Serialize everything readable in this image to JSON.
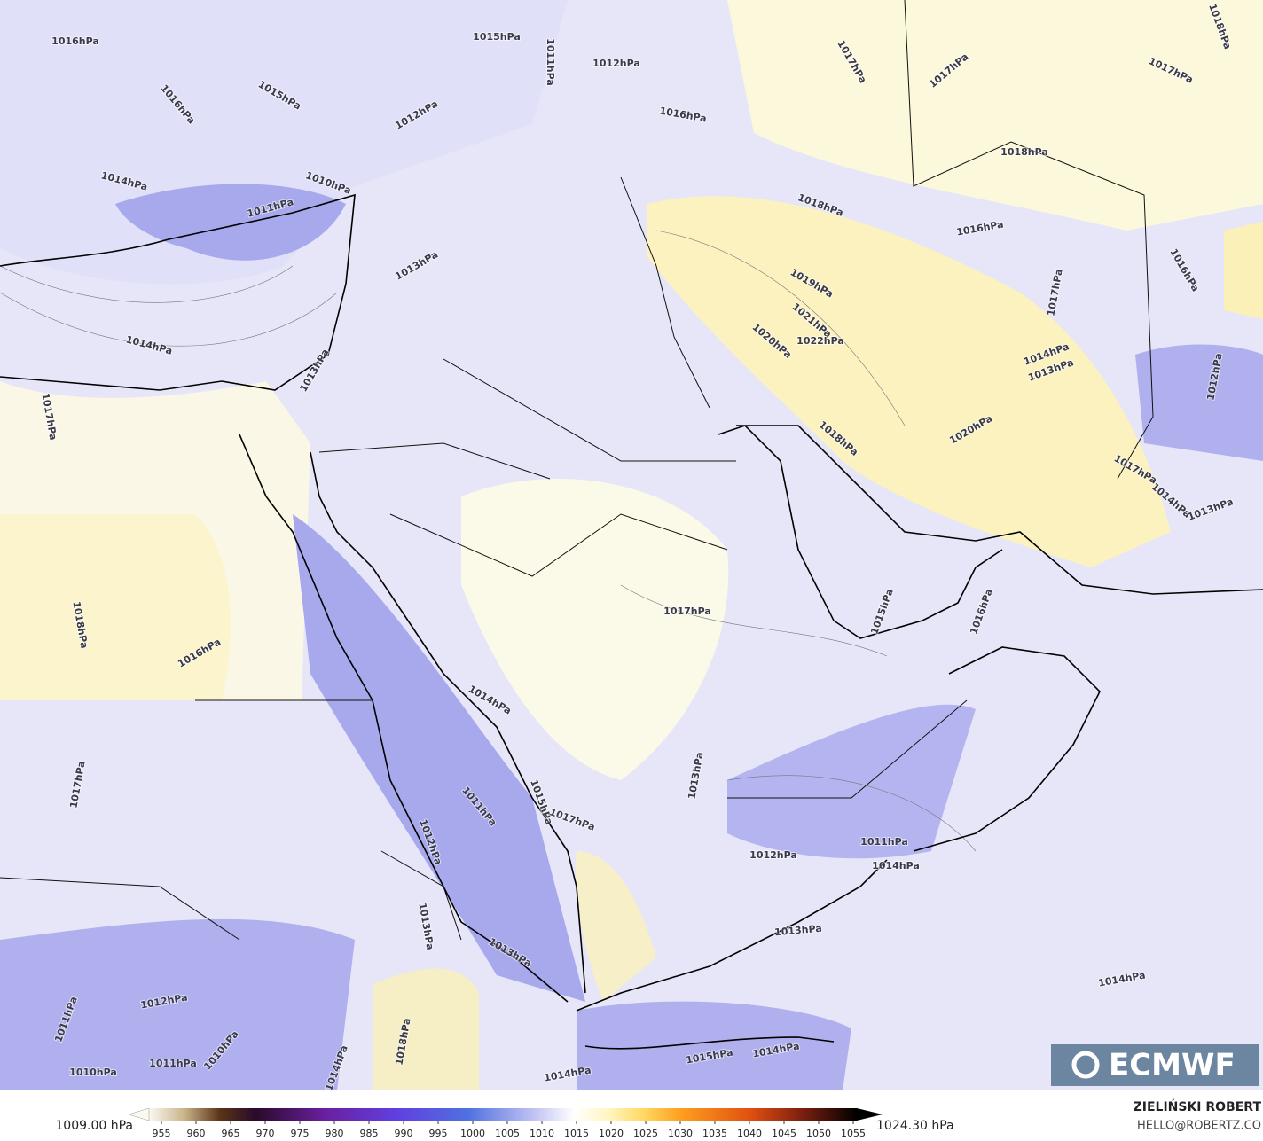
{
  "map": {
    "isobar_labels": [
      "1016hPa",
      "1016hPa",
      "1015hPa",
      "1012hPa",
      "1014hPa",
      "1010hPa",
      "1011hPa",
      "1013hPa",
      "1014hPa",
      "1013hPa",
      "1017hPa",
      "1018hPa",
      "1016hPa",
      "1017hPa",
      "1012hPa",
      "1011hPa",
      "1011hPa",
      "1010hPa",
      "1010hPa",
      "1015hPa",
      "1011hPa",
      "1012hPa",
      "1016hPa",
      "1017hPa",
      "1017hPa",
      "1017hPa",
      "1018hPa",
      "1018hPa",
      "1018hPa",
      "1016hPa",
      "1019hPa",
      "1021hPa",
      "1022hPa",
      "1020hPa",
      "1018hPa",
      "1020hPa",
      "1017hPa",
      "1014hPa",
      "1013hPa",
      "1012hPa",
      "1017hPa",
      "1014hPa",
      "1013hPa",
      "1016hPa",
      "1017hPa",
      "1015hPa",
      "1016hPa",
      "1014hPa",
      "1011hPa",
      "1015hPa",
      "1017hPa",
      "1013hPa",
      "1012hPa",
      "1011hPa",
      "1014hPa",
      "1013hPa",
      "1014hPa",
      "1013hPa",
      "1012hPa",
      "1013hPa",
      "1014hPa",
      "1018hPa",
      "1014hPa",
      "1015hPa",
      "1014hPa"
    ]
  },
  "colorbar": {
    "ticks": [
      955,
      960,
      965,
      970,
      975,
      980,
      985,
      990,
      995,
      1000,
      1005,
      1010,
      1015,
      1020,
      1025,
      1030,
      1035,
      1040,
      1045,
      1050,
      1055
    ],
    "min_label": "1009.00 hPa",
    "max_label": "1024.30 hPa"
  },
  "credits": {
    "author": "ZIELIŃSKI ROBERT",
    "email": "HELLO@ROBERTZ.CO"
  },
  "logo": {
    "text": "ECMWF"
  }
}
